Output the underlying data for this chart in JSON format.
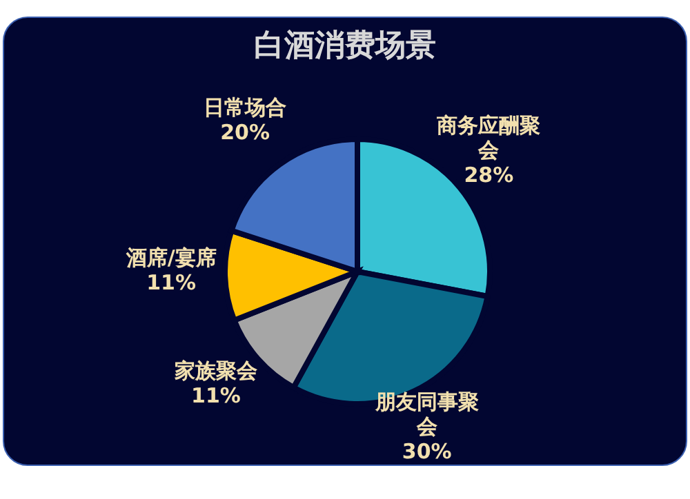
{
  "chart_data": {
    "type": "pie",
    "title": "白酒消费场景",
    "categories": [
      "商务应酬聚会",
      "朋友同事聚会",
      "家族聚会",
      "酒席/宴席",
      "日常场合"
    ],
    "values": [
      28,
      30,
      11,
      11,
      20
    ],
    "value_labels": [
      "28%",
      "30%",
      "11%",
      "11%",
      "20%"
    ],
    "colors": [
      "#38c3d4",
      "#0a6a8a",
      "#a6a6a6",
      "#ffc000",
      "#4472c4"
    ],
    "legend": false
  }
}
